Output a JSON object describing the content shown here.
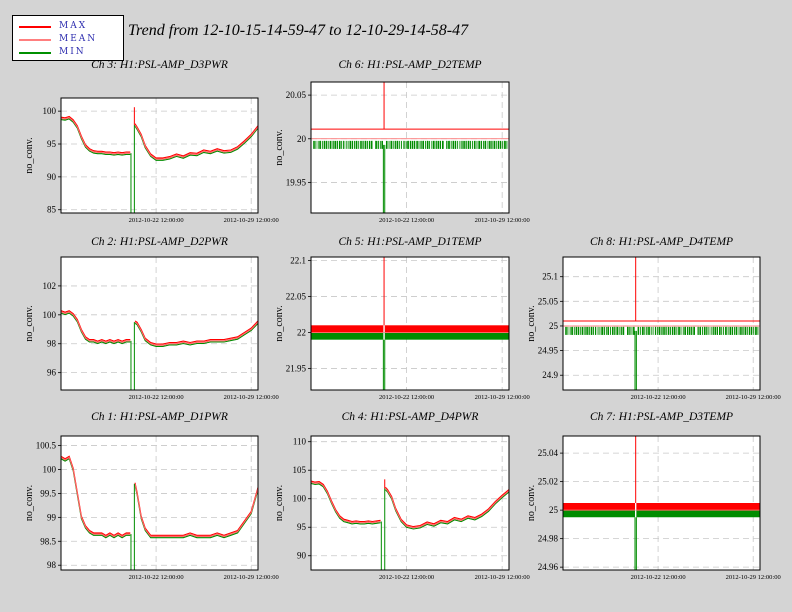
{
  "title": "Trend from 12-10-15-14-59-47 to 12-10-29-14-58-47",
  "legend": [
    {
      "label": "MAX",
      "color": "#ff0000"
    },
    {
      "label": "MEAN",
      "color": "#ff7f7f"
    },
    {
      "label": "MIN",
      "color": "#009000"
    }
  ],
  "colors": {
    "max": "#ff0000",
    "mean": "#ff6666",
    "min": "#008c00",
    "grid": "#c8c8c8"
  },
  "chart_data": [
    {
      "type": "line",
      "title": "Ch 3: H1:PSL-AMP_D3PWR",
      "ylabel": "no_conv.",
      "ylim": [
        84.5,
        102
      ],
      "yticks": [
        "85",
        "90",
        "95",
        "100"
      ],
      "yticks_values": [
        85,
        90,
        95,
        100
      ],
      "xticks": [
        "2012-10-22 12:00:00",
        "2012-10-29 12:00:00"
      ],
      "xticks_values": [
        7,
        14
      ],
      "xlim": [
        0,
        14.5
      ],
      "grid": true,
      "style": "pwr",
      "gap": {
        "x": 5.15,
        "width": 0.25,
        "spike": 100.6
      },
      "x": [
        0,
        0.3,
        0.6,
        0.9,
        1.2,
        1.5,
        1.8,
        2.1,
        2.4,
        2.7,
        3.0,
        3.3,
        3.6,
        3.9,
        4.2,
        4.5,
        4.8,
        5.1,
        5.45,
        5.6,
        5.9,
        6.2,
        6.6,
        7.0,
        7.5,
        8.0,
        8.5,
        9.0,
        9.5,
        10.0,
        10.5,
        11.0,
        11.5,
        12.0,
        12.5,
        13.0,
        13.5,
        14.0,
        14.5
      ],
      "series": [
        {
          "values": [
            98.9,
            98.8,
            99.0,
            98.5,
            97.6,
            96.0,
            94.7,
            94.1,
            93.8,
            93.7,
            93.7,
            93.6,
            93.6,
            93.5,
            93.6,
            93.5,
            93.6,
            93.6,
            97.9,
            97.4,
            96.3,
            94.6,
            93.3,
            92.7,
            92.7,
            92.9,
            93.3,
            93.0,
            93.5,
            93.4,
            93.9,
            93.7,
            94.1,
            93.8,
            93.9,
            94.4,
            95.3,
            96.3,
            97.6
          ]
        }
      ]
    },
    {
      "type": "line",
      "title": "Ch 6: H1:PSL-AMP_D2TEMP",
      "ylabel": "no_conv.",
      "ylim": [
        19.915,
        20.065
      ],
      "yticks": [
        "19.95",
        "20",
        "20.05"
      ],
      "yticks_values": [
        19.95,
        20,
        20.05
      ],
      "xticks": [
        "2012-10-22 12:00:00",
        "2012-10-29 12:00:00"
      ],
      "xticks_values": [
        7,
        14
      ],
      "xlim": [
        0,
        14.5
      ],
      "grid": true,
      "style": "temp_sparse",
      "gap": {
        "x": 5.3,
        "width": 0.1
      },
      "series": [
        {
          "name": "MAX",
          "values": [
            20.011
          ]
        },
        {
          "name": "MEAN",
          "values": [
            20
          ]
        },
        {
          "name": "MIN",
          "values": [
            19.993
          ]
        }
      ]
    },
    {
      "type": "line",
      "title": "Ch 2: H1:PSL-AMP_D2PWR",
      "ylabel": "no_conv.",
      "ylim": [
        94.8,
        104
      ],
      "yticks": [
        "96",
        "98",
        "100",
        "102"
      ],
      "yticks_values": [
        96,
        98,
        100,
        102
      ],
      "xticks": [
        "2012-10-22 12:00:00",
        "2012-10-29 12:00:00"
      ],
      "xticks_values": [
        7,
        14
      ],
      "xlim": [
        0,
        14.5
      ],
      "grid": true,
      "style": "pwr",
      "gap": {
        "x": 5.15,
        "width": 0.25
      },
      "x": [
        0,
        0.3,
        0.6,
        0.9,
        1.2,
        1.5,
        1.8,
        2.1,
        2.4,
        2.7,
        3.0,
        3.3,
        3.6,
        3.9,
        4.2,
        4.5,
        4.8,
        5.1,
        5.45,
        5.6,
        5.9,
        6.2,
        6.6,
        7.0,
        7.5,
        8.0,
        8.5,
        9.0,
        9.5,
        10.0,
        10.5,
        11.0,
        11.5,
        12.0,
        12.5,
        13.0,
        13.5,
        14.0,
        14.5
      ],
      "series": [
        {
          "values": [
            100.2,
            100.1,
            100.2,
            100.0,
            99.6,
            98.9,
            98.4,
            98.2,
            98.2,
            98.1,
            98.2,
            98.1,
            98.2,
            98.1,
            98.2,
            98.1,
            98.2,
            98.2,
            99.5,
            99.4,
            98.9,
            98.3,
            98.0,
            97.9,
            97.9,
            98.0,
            98.0,
            98.1,
            98.0,
            98.1,
            98.1,
            98.2,
            98.2,
            98.2,
            98.3,
            98.4,
            98.7,
            99.0,
            99.5
          ]
        }
      ]
    },
    {
      "type": "line",
      "title": "Ch 5: H1:PSL-AMP_D1TEMP",
      "ylabel": "no_conv.",
      "ylim": [
        21.92,
        22.105
      ],
      "yticks": [
        "21.95",
        "22",
        "22.05",
        "22.1"
      ],
      "yticks_values": [
        21.95,
        22,
        22.05,
        22.1
      ],
      "xticks": [
        "2012-10-22 12:00:00",
        "2012-10-29 12:00:00"
      ],
      "xticks_values": [
        7,
        14
      ],
      "xlim": [
        0,
        14.5
      ],
      "grid": true,
      "style": "temp_band",
      "gap": {
        "x": 5.3,
        "width": 0.1
      },
      "series": [
        {
          "name": "MAX",
          "values": [
            22.01
          ]
        },
        {
          "name": "MEAN",
          "values": [
            22.0
          ]
        },
        {
          "name": "MIN",
          "values": [
            21.99
          ]
        }
      ]
    },
    {
      "type": "line",
      "title": "Ch 8: H1:PSL-AMP_D4TEMP",
      "ylabel": "no_conv.",
      "ylim": [
        24.87,
        25.14
      ],
      "yticks": [
        "24.9",
        "24.95",
        "25",
        "25.05",
        "25.1"
      ],
      "yticks_values": [
        24.9,
        24.95,
        25,
        25.05,
        25.1
      ],
      "xticks": [
        "2012-10-22 12:00:00",
        "2012-10-29 12:00:00"
      ],
      "xticks_values": [
        7,
        14
      ],
      "xlim": [
        0,
        14.5
      ],
      "grid": true,
      "style": "temp_sparse",
      "gap": {
        "x": 5.3,
        "width": 0.1
      },
      "series": [
        {
          "name": "MAX",
          "values": [
            25.01
          ]
        },
        {
          "name": "MEAN",
          "values": [
            25.0
          ]
        },
        {
          "name": "MIN",
          "values": [
            24.99
          ]
        }
      ]
    },
    {
      "type": "line",
      "title": "Ch 1: H1:PSL-AMP_D1PWR",
      "ylabel": "no_conv.",
      "ylim": [
        97.9,
        100.7
      ],
      "yticks": [
        "98",
        "98.5",
        "99",
        "99.5",
        "100",
        "100.5"
      ],
      "yticks_values": [
        98,
        98.5,
        99,
        99.5,
        100,
        100.5
      ],
      "xticks": [
        "2012-10-22 12:00:00",
        "2012-10-29 12:00:00"
      ],
      "xticks_values": [
        7,
        14
      ],
      "xlim": [
        0,
        14.5
      ],
      "grid": true,
      "style": "pwr",
      "gap": {
        "x": 5.15,
        "width": 0.25
      },
      "x": [
        0,
        0.3,
        0.6,
        0.9,
        1.2,
        1.5,
        1.8,
        2.1,
        2.4,
        2.7,
        3.0,
        3.3,
        3.6,
        3.9,
        4.2,
        4.5,
        4.8,
        5.1,
        5.45,
        5.6,
        5.9,
        6.2,
        6.6,
        7.0,
        7.5,
        8.0,
        8.5,
        9.0,
        9.5,
        10.0,
        10.5,
        11.0,
        11.5,
        12.0,
        12.5,
        13.0,
        13.5,
        14.0,
        14.5
      ],
      "series": [
        {
          "values": [
            100.25,
            100.2,
            100.25,
            100.0,
            99.5,
            99.0,
            98.8,
            98.7,
            98.65,
            98.65,
            98.65,
            98.6,
            98.65,
            98.6,
            98.65,
            98.6,
            98.65,
            98.65,
            99.7,
            99.5,
            99.0,
            98.75,
            98.6,
            98.6,
            98.6,
            98.6,
            98.6,
            98.6,
            98.65,
            98.6,
            98.6,
            98.6,
            98.65,
            98.6,
            98.65,
            98.7,
            98.9,
            99.1,
            99.6
          ]
        }
      ]
    },
    {
      "type": "line",
      "title": "Ch 4: H1:PSL-AMP_D4PWR",
      "ylabel": "no_conv.",
      "ylim": [
        87.5,
        111
      ],
      "yticks": [
        "90",
        "95",
        "100",
        "105",
        "110"
      ],
      "yticks_values": [
        90,
        95,
        100,
        105,
        110
      ],
      "xticks": [
        "2012-10-22 12:00:00",
        "2012-10-29 12:00:00"
      ],
      "xticks_values": [
        7,
        14
      ],
      "xlim": [
        0,
        14.5
      ],
      "grid": true,
      "style": "pwr",
      "gap": {
        "x": 5.15,
        "width": 0.25,
        "spike": 103.4
      },
      "x": [
        0,
        0.3,
        0.6,
        0.9,
        1.2,
        1.5,
        1.8,
        2.1,
        2.4,
        2.7,
        3.0,
        3.3,
        3.6,
        3.9,
        4.2,
        4.5,
        4.8,
        5.1,
        5.45,
        5.6,
        5.9,
        6.2,
        6.6,
        7.0,
        7.5,
        8.0,
        8.5,
        9.0,
        9.5,
        10.0,
        10.5,
        11.0,
        11.5,
        12.0,
        12.5,
        13.0,
        13.5,
        14.0,
        14.5
      ],
      "series": [
        {
          "values": [
            102.9,
            102.7,
            102.8,
            102.3,
            101.1,
            99.4,
            97.9,
            96.8,
            96.2,
            96.0,
            95.8,
            95.9,
            95.8,
            95.8,
            95.9,
            95.8,
            95.9,
            96.0,
            101.8,
            101.4,
            100.2,
            98.1,
            96.2,
            95.2,
            94.9,
            95.1,
            95.7,
            95.4,
            96.0,
            95.8,
            96.5,
            96.2,
            96.8,
            96.5,
            97.1,
            98.0,
            99.3,
            100.4,
            101.4
          ]
        }
      ]
    },
    {
      "type": "line",
      "title": "Ch 7: H1:PSL-AMP_D3TEMP",
      "ylabel": "no_conv.",
      "ylim": [
        24.958,
        25.052
      ],
      "yticks": [
        "24.96",
        "24.98",
        "25",
        "25.02",
        "25.04"
      ],
      "yticks_values": [
        24.96,
        24.98,
        25,
        25.02,
        25.04
      ],
      "xticks": [
        "2012-10-22 12:00:00",
        "2012-10-29 12:00:00"
      ],
      "xticks_values": [
        7,
        14
      ],
      "xlim": [
        0,
        14.5
      ],
      "grid": true,
      "style": "temp_band",
      "gap": {
        "x": 5.3,
        "width": 0.1
      },
      "series": [
        {
          "name": "MAX",
          "values": [
            25.005
          ]
        },
        {
          "name": "MEAN",
          "values": [
            25.0
          ]
        },
        {
          "name": "MIN",
          "values": [
            24.995
          ]
        }
      ]
    }
  ]
}
